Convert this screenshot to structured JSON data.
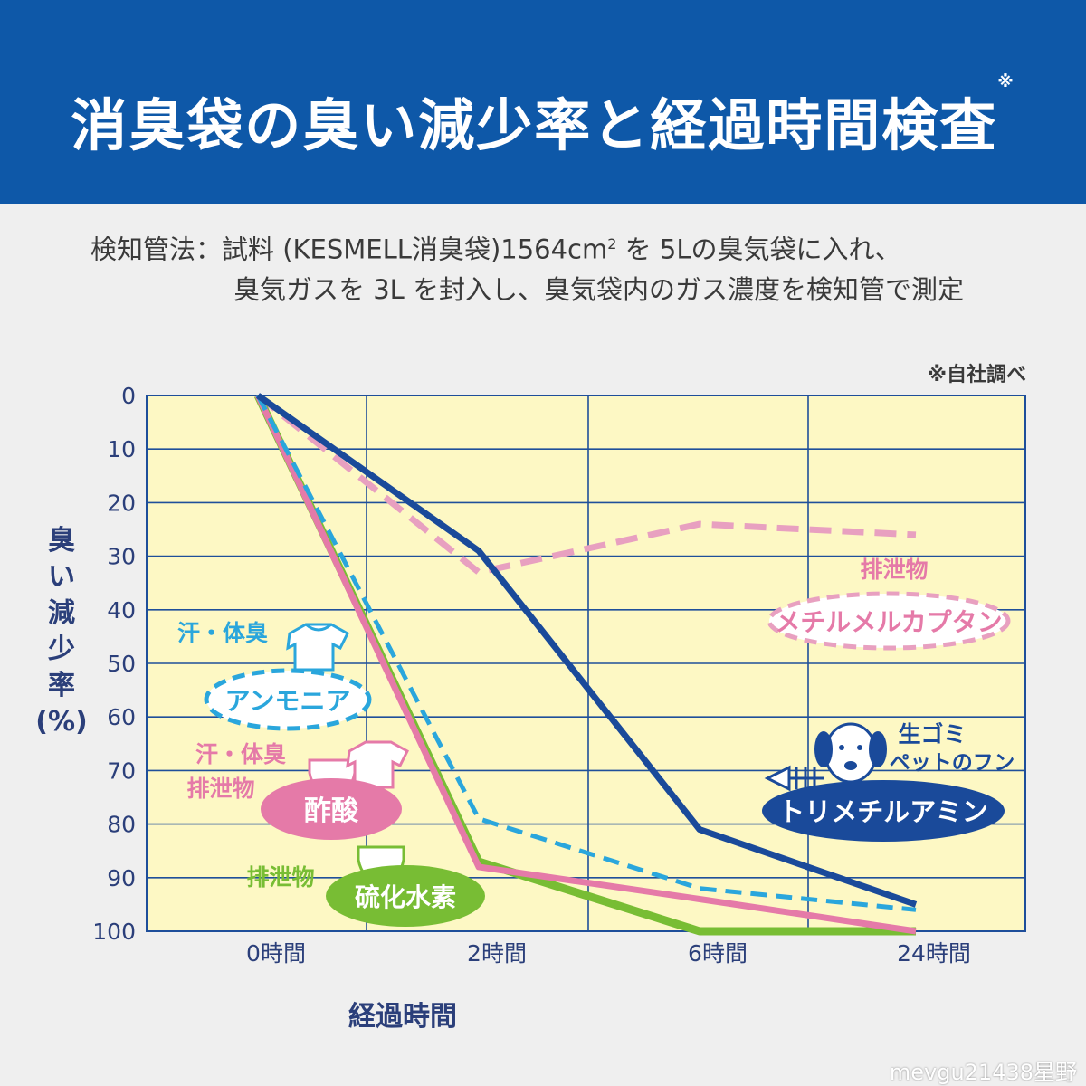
{
  "header": {
    "title": "消臭袋の臭い減少率と経過時間検査",
    "title_mark": "※"
  },
  "method": {
    "line1_a": "検知管法：試料 (KESMELL消臭袋)1564cm",
    "line1_sup": "2",
    "line1_b": " を 5Lの臭気袋に入れ、",
    "line2": "臭気ガスを 3L を封入し、臭気袋内のガス濃度を検知管で測定"
  },
  "source_note": "※自社調べ",
  "watermark": "mevgu21438星野",
  "colors": {
    "banner": "#0e58a8",
    "plot_bg": "#fdf8c4",
    "grid": "#1f4f9a",
    "trimethylamine": "#1a4a9a",
    "ammonia": "#2aa6dc",
    "acetic_acid": "#e57aa8",
    "hydrogen_sulfide": "#78bd34",
    "methyl_mercaptan": "#e8a0c0"
  },
  "labels": {
    "ammonia_group": "汗・体臭",
    "ammonia_name": "アンモニア",
    "acetic_group_1": "汗・体臭",
    "acetic_group_2": "排泄物",
    "acetic_name": "酢酸",
    "h2s_group": "排泄物",
    "h2s_name": "硫化水素",
    "mercaptan_group": "排泄物",
    "mercaptan_name": "メチルメルカプタン",
    "tma_group_1": "生ゴミ",
    "tma_group_2": "ペットのフン",
    "tma_name": "トリメチルアミン"
  },
  "icons": [
    "tshirt-icon",
    "diaper-icon",
    "dog-icon",
    "fish-bone-icon"
  ],
  "chart_data": {
    "type": "line",
    "title": "消臭袋の臭い減少率と経過時間検査",
    "xlabel": "経過時間",
    "ylabel": "臭い減少率 (%)",
    "categories": [
      "0時間",
      "2時間",
      "6時間",
      "24時間"
    ],
    "y_ticks": [
      "0",
      "10",
      "20",
      "30",
      "40",
      "50",
      "60",
      "70",
      "80",
      "90",
      "100"
    ],
    "ylim": [
      0,
      100
    ],
    "y_inverted": true,
    "grid": true,
    "series": [
      {
        "name": "トリメチルアミン",
        "values": [
          0,
          29,
          81,
          95
        ],
        "style": "solid",
        "color": "#1a4a9a"
      },
      {
        "name": "メチルメルカプタン",
        "values": [
          0,
          33,
          24,
          26
        ],
        "style": "dashed",
        "color": "#e8a0c0"
      },
      {
        "name": "アンモニア",
        "values": [
          0,
          79,
          92,
          96
        ],
        "style": "dashed",
        "color": "#2aa6dc"
      },
      {
        "name": "酢酸",
        "values": [
          0,
          88,
          94,
          100
        ],
        "style": "solid",
        "color": "#e57aa8"
      },
      {
        "name": "硫化水素",
        "values": [
          0,
          87,
          100,
          100
        ],
        "style": "solid",
        "color": "#78bd34"
      }
    ]
  }
}
